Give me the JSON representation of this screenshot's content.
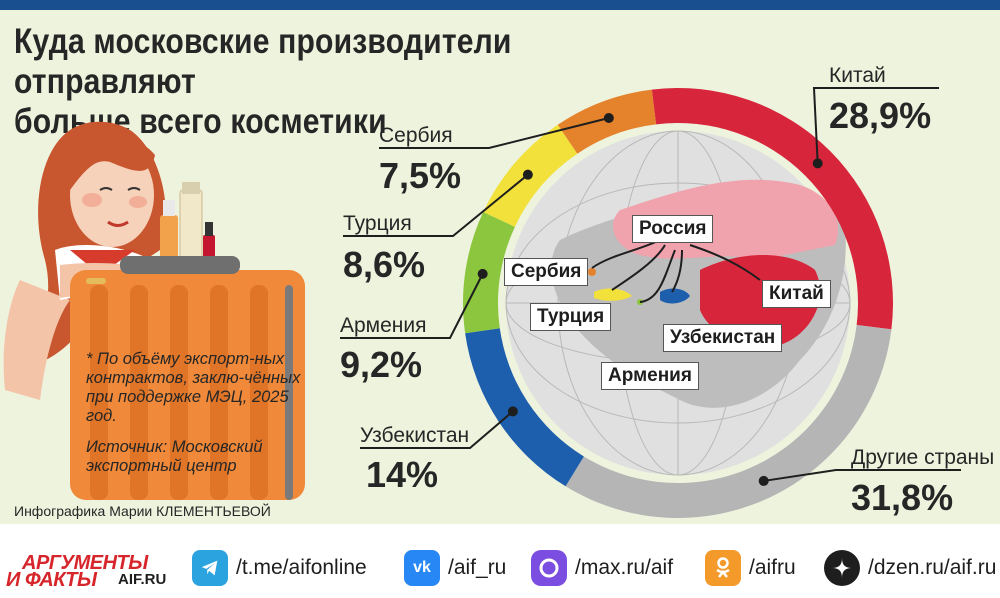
{
  "title_lines": [
    "Куда московские производители отправляют",
    "больше всего косметики"
  ],
  "note": "* По объёму экспорт-ных контрактов, заклю-чённых при поддержке МЭЦ, 2025 год.",
  "source": "Источник: Московский экспортный центр",
  "credit": "Инфографика Марии КЛЕМЕНТЬЕВОЙ",
  "map_labels": {
    "russia": "Россия",
    "serbia": "Сербия",
    "china": "Китай",
    "turkey": "Турция",
    "uzbekistan": "Узбекистан",
    "armenia": "Армения"
  },
  "chart_data": {
    "type": "pie",
    "unit": "%",
    "slices": [
      {
        "name": "Китай",
        "value": 28.9,
        "display": "28,9%",
        "color": "#d7263b"
      },
      {
        "name": "Другие страны",
        "value": 31.8,
        "display": "31,8%",
        "color": "#b5b5b5"
      },
      {
        "name": "Узбекистан",
        "value": 14,
        "display": "14%",
        "color": "#1d5fac"
      },
      {
        "name": "Армения",
        "value": 9.2,
        "display": "9,2%",
        "color": "#8cc63f"
      },
      {
        "name": "Турция",
        "value": 8.6,
        "display": "8,6%",
        "color": "#f2e13a"
      },
      {
        "name": "Сербия",
        "value": 7.5,
        "display": "7,5%",
        "color": "#e5822c"
      }
    ]
  },
  "footer": {
    "logo_line1": "АРГУМЕНТЫ",
    "logo_line2": "И ФАКТЫ",
    "logo_site": "AIF.RU",
    "links": [
      {
        "icon": "telegram-icon",
        "color": "#2aa3df",
        "text": "/t.me/aifonline"
      },
      {
        "icon": "vk-icon",
        "color": "#2787f5",
        "text": "/aif_ru"
      },
      {
        "icon": "max-icon",
        "color": "#7b4de0",
        "text": "/max.ru/aif"
      },
      {
        "icon": "ok-icon",
        "color": "#f39a2b",
        "text": "/aifru"
      },
      {
        "icon": "dzen-icon",
        "color": "#1e1e1e",
        "text": "/dzen.ru/aif.ru"
      }
    ]
  }
}
